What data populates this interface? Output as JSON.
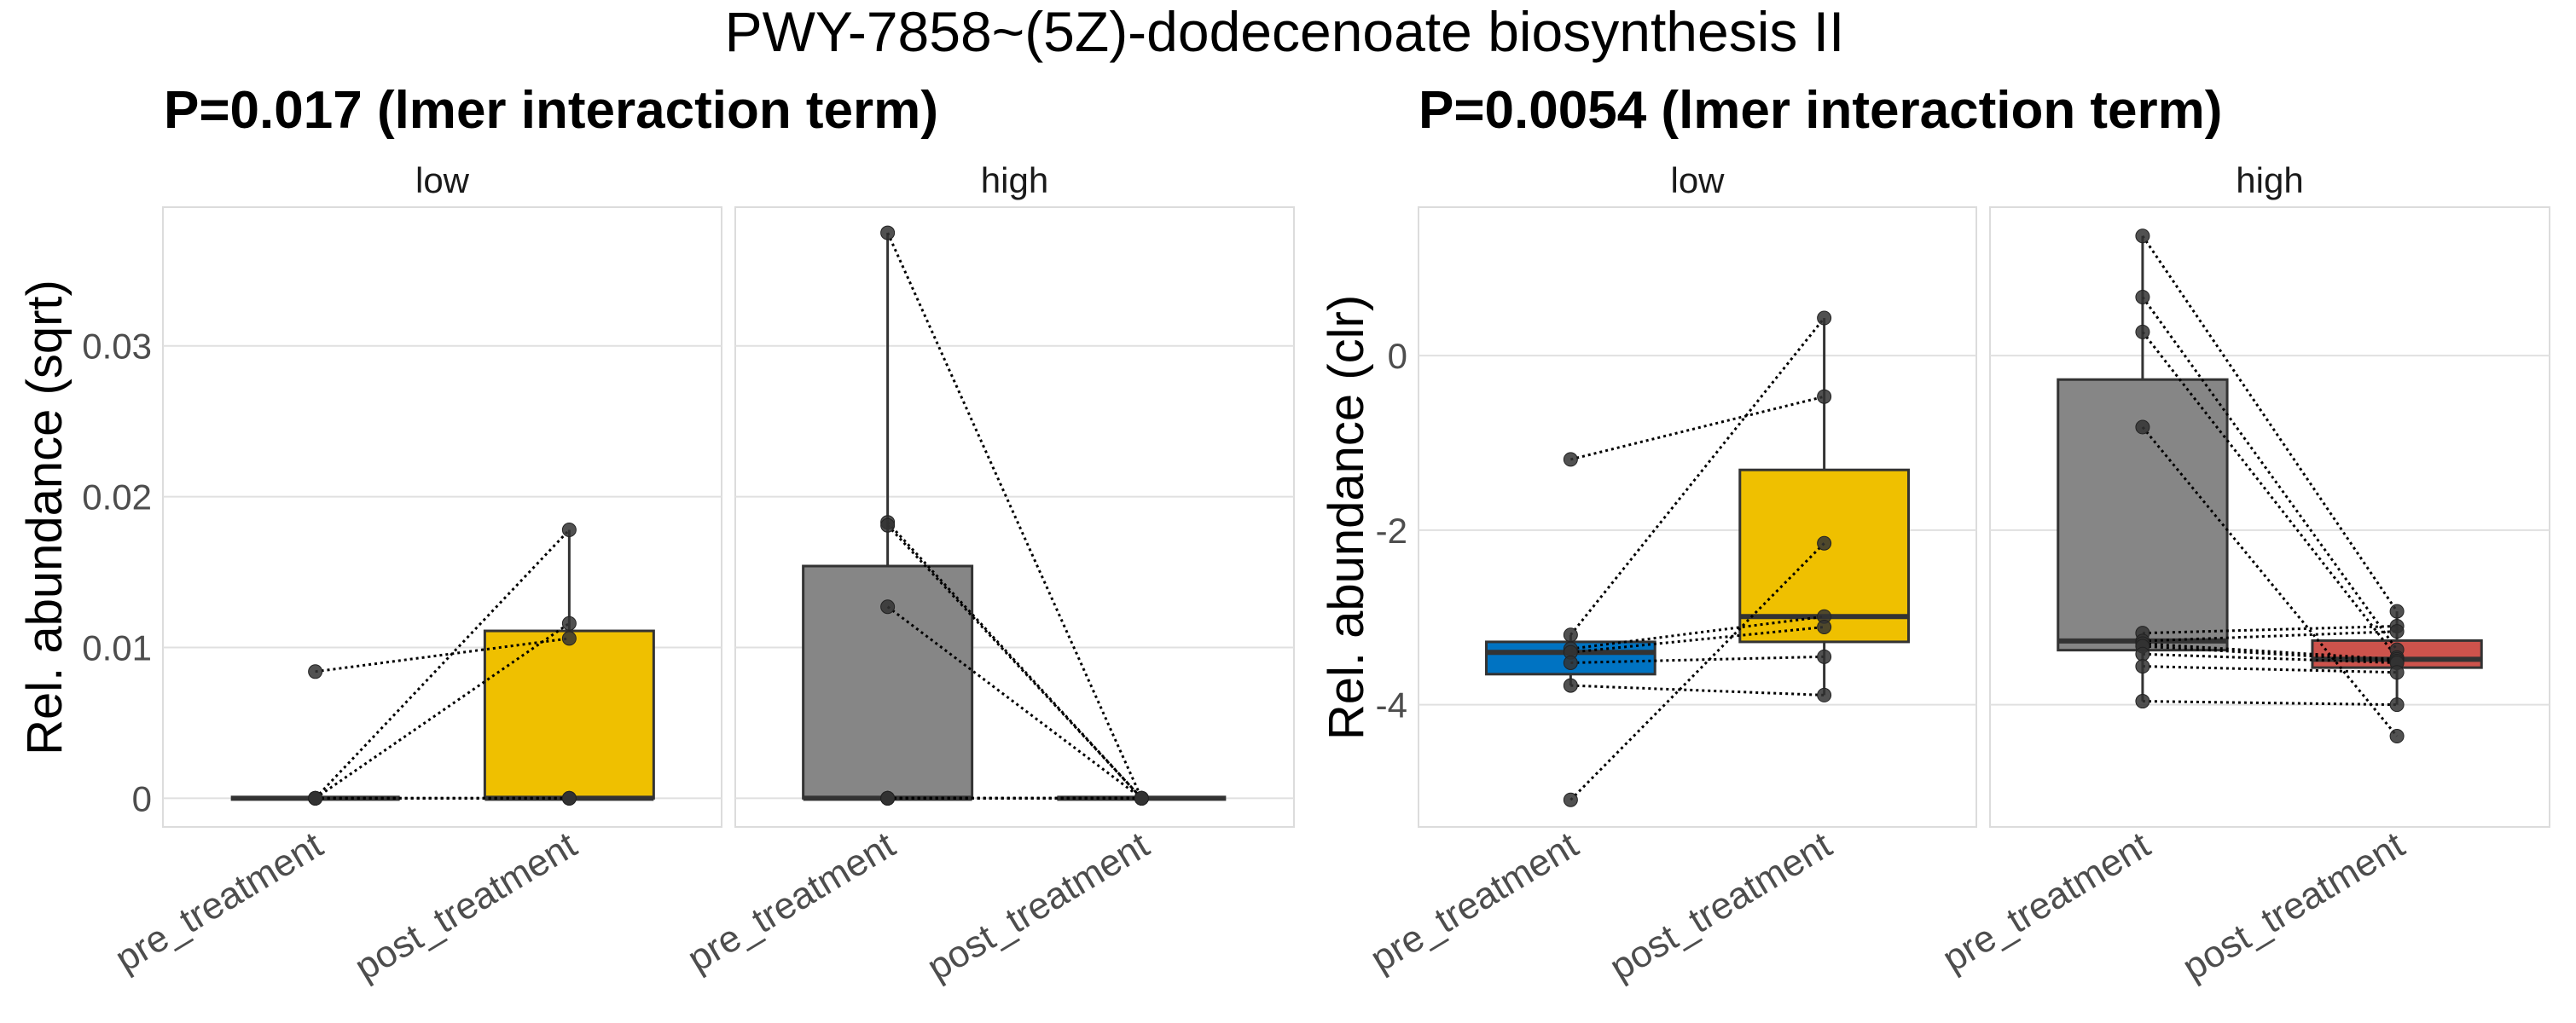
{
  "chart_data": {
    "type": "boxplot",
    "title": "PWY-7858~(5Z)-dodecenoate biosynthesis II",
    "colors": {
      "pre_low": "#0073C2",
      "post_low": "#EFC000",
      "pre_high": "#868686",
      "post_high": "#CD534C",
      "neutral_pre": "#868686",
      "points": "#333333",
      "grid": "#e0e0e0",
      "panel_border": "#dcdcdc"
    },
    "plots": [
      {
        "subtitle": "P=0.017 (lmer interaction term)",
        "ylabel": "Rel. abundance (sqrt)",
        "ylim": [
          -0.0019,
          0.0392
        ],
        "yticks": [
          0,
          0.01,
          0.02,
          0.03
        ],
        "ytick_labels": [
          "0",
          "0.01",
          "0.02",
          "0.03"
        ],
        "grid": true,
        "facets": [
          {
            "label": "low",
            "categories": [
              "pre_treatment",
              "post_treatment"
            ],
            "box_colors": [
              "#868686",
              "#EFC000"
            ],
            "pre": [
              0.0084,
              0,
              0,
              0,
              0,
              0,
              0
            ],
            "post": [
              0.0106,
              0.0178,
              0.0116,
              0,
              0,
              0,
              0
            ]
          },
          {
            "label": "high",
            "categories": [
              "pre_treatment",
              "post_treatment"
            ],
            "box_colors": [
              "#868686",
              "#868686"
            ],
            "pre": [
              0.0375,
              0.0183,
              0.0181,
              0.0127,
              0,
              0,
              0,
              0,
              0,
              0,
              0
            ],
            "post": [
              0,
              0,
              0,
              0,
              0,
              0,
              0,
              0,
              0,
              0,
              0
            ]
          }
        ]
      },
      {
        "subtitle": "P=0.0054 (lmer interaction term)",
        "ylabel": "Rel. abundance (clr)",
        "ylim": [
          -5.4,
          1.7
        ],
        "yticks": [
          -4,
          -2,
          0
        ],
        "ytick_labels": [
          "-4",
          "-2",
          "0"
        ],
        "grid": true,
        "facets": [
          {
            "label": "low",
            "categories": [
              "pre_treatment",
              "post_treatment"
            ],
            "box_colors": [
              "#0073C2",
              "#EFC000"
            ],
            "pre": [
              -1.19,
              -3.2,
              -5.09,
              -3.36,
              -3.4,
              -3.52,
              -3.78
            ],
            "post": [
              -0.47,
              0.43,
              -2.15,
              -2.99,
              -3.11,
              -3.45,
              -3.89
            ]
          },
          {
            "label": "high",
            "categories": [
              "pre_treatment",
              "post_treatment"
            ],
            "box_colors": [
              "#868686",
              "#CD534C"
            ],
            "pre": [
              1.37,
              0.67,
              0.27,
              -0.82,
              -3.18,
              -3.27,
              -3.3,
              -3.33,
              -3.42,
              -3.56,
              -3.96
            ],
            "post": [
              -2.93,
              -3.37,
              -3.46,
              -4.36,
              -3.1,
              -3.16,
              -3.48,
              -3.5,
              -3.52,
              -3.63,
              -4.0
            ]
          }
        ]
      }
    ]
  }
}
